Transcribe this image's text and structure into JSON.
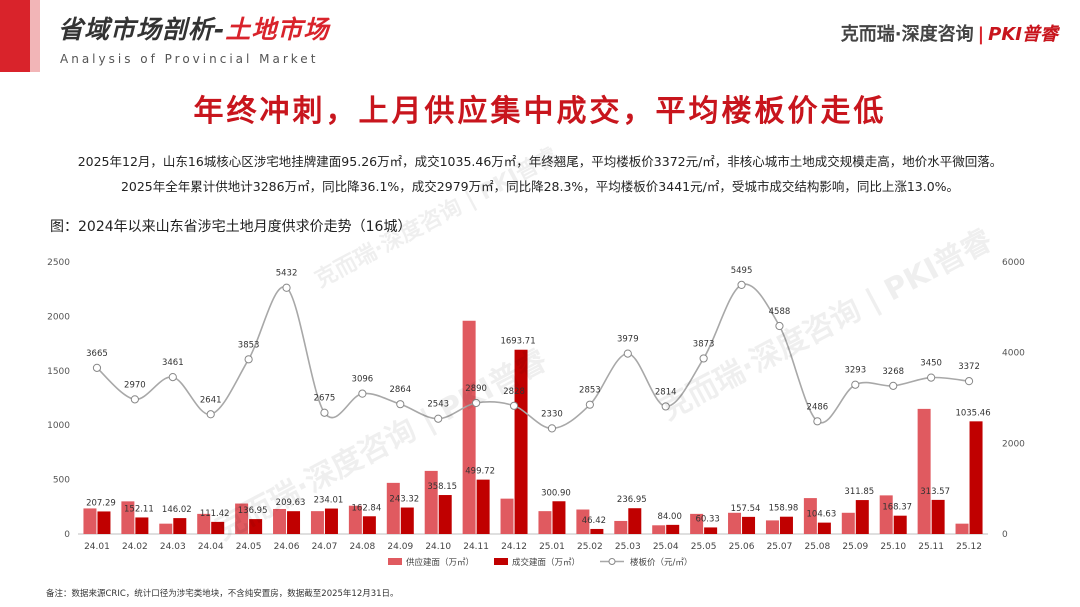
{
  "header": {
    "title_main": "省域市场剖析-",
    "title_accent": "土地市场",
    "subtitle": "Analysis of Provincial Market",
    "brand_name": "克而瑞·深度咨询",
    "brand_sep": "|",
    "brand_logo": "PKI普睿"
  },
  "headline": "年终冲刺，上月供应集中成交，平均楼板价走低",
  "summary": [
    "2025年12月，山东16城核心区涉宅地挂牌建面95.26万㎡，成交1035.46万㎡，年终翘尾，平均楼板价3372元/㎡，非核心城市土地成交规模走高，地价水平微回落。",
    "2025年全年累计供地计3286万㎡，同比降36.1%，成交2979万㎡，同比降28.3%，平均楼板价3441元/㎡，受城市成交结构影响，同比上涨13.0%。"
  ],
  "figure_title": "图：2024年以来山东省涉宅土地月度供求价走势（16城）",
  "footnote": "备注：数据来源CRIC，统计口径为涉宅类地块，不含纯安置房，数据截至2025年12月31日。",
  "colors": {
    "supply": "#e05a60",
    "deal": "#c00000",
    "price": "#a8a8a8",
    "accent": "#d9232b"
  },
  "chart_data": {
    "type": "bar+line",
    "categories": [
      "24.01",
      "24.02",
      "24.03",
      "24.04",
      "24.05",
      "24.06",
      "24.07",
      "24.08",
      "24.09",
      "24.10",
      "24.11",
      "24.12",
      "25.01",
      "25.02",
      "25.03",
      "25.04",
      "25.05",
      "25.06",
      "25.07",
      "25.08",
      "25.09",
      "25.10",
      "25.11",
      "25.12"
    ],
    "series": [
      {
        "name": "供应建面（万㎡）",
        "type": "bar",
        "axis": "left",
        "values": [
          235,
          300,
          95,
          185,
          280,
          230,
          210,
          260,
          470,
          580,
          1960,
          325,
          210,
          225,
          120,
          80,
          185,
          195,
          125,
          330,
          195,
          355,
          1150,
          95
        ]
      },
      {
        "name": "成交建面（万㎡）",
        "type": "bar",
        "axis": "left",
        "values": [
          207.29,
          152.11,
          146.02,
          111.42,
          136.95,
          209.63,
          234.01,
          162.84,
          243.32,
          358.15,
          499.72,
          1693.71,
          300.9,
          46.42,
          236.95,
          84.0,
          60.33,
          157.54,
          158.98,
          104.63,
          311.85,
          168.37,
          313.57,
          1035.46
        ]
      },
      {
        "name": "楼板价（元/㎡）",
        "type": "line",
        "axis": "right",
        "values": [
          3665,
          2970,
          3461,
          2641,
          3853,
          5432,
          2675,
          3096,
          2864,
          2543,
          2890,
          2828,
          2330,
          2853,
          3979,
          2814,
          3873,
          5495,
          4588,
          2486,
          3293,
          3268,
          3450,
          3372
        ]
      }
    ],
    "deal_labels": [
      "207.29",
      "152.11",
      "146.02",
      "111.42",
      "136.95",
      "209.63",
      "234.01",
      "162.84",
      "243.32",
      "358.15",
      "499.72",
      "1693.71",
      "300.90",
      "46.42",
      "236.95",
      "84.00",
      "60.33",
      "157.54",
      "158.98",
      "104.63",
      "311.85",
      "168.37",
      "313.57",
      "1035.46"
    ],
    "price_labels": [
      "3665",
      "2970",
      "3461",
      "2641",
      "3853",
      "5432",
      "2675",
      "3096",
      "2864",
      "2543",
      "2890",
      "2828",
      "2330",
      "2853",
      "3979",
      "2814",
      "3873",
      "5495",
      "4588",
      "2486",
      "3293",
      "3268",
      "3450",
      "3372"
    ],
    "y_left_ticks": [
      "0",
      "500",
      "1000",
      "1500",
      "2000",
      "2500"
    ],
    "y_right_ticks": [
      "0",
      "2000",
      "4000",
      "6000"
    ],
    "ylim_left": [
      0,
      2500
    ],
    "ylim_right": [
      0,
      6000
    ],
    "legend": [
      "供应建面（万㎡）",
      "成交建面（万㎡）",
      "楼板价（元/㎡）"
    ],
    "legend_position": "bottom",
    "grid": false
  },
  "watermark": [
    "克而瑞·深度咨询 | PKI普睿",
    "克而瑞·深度咨询 | PKI普睿",
    "克而瑞·深度咨询 | PKI普睿"
  ]
}
